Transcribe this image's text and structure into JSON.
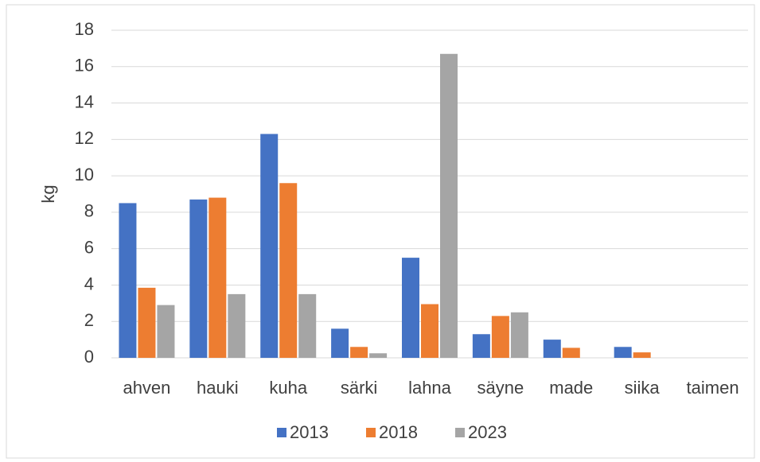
{
  "chart_data": {
    "type": "bar",
    "y_label": "kg",
    "categories": [
      "ahven",
      "hauki",
      "kuha",
      "särki",
      "lahna",
      "säyne",
      "made",
      "siika",
      "taimen"
    ],
    "series": [
      {
        "name": "2013",
        "color": "#4472c4",
        "values": [
          8.5,
          8.7,
          12.3,
          1.6,
          5.5,
          1.3,
          1.0,
          0.6,
          0
        ]
      },
      {
        "name": "2018",
        "color": "#ed7d31",
        "values": [
          3.85,
          8.8,
          9.6,
          0.6,
          2.95,
          2.3,
          0.55,
          0.3,
          0
        ]
      },
      {
        "name": "2023",
        "color": "#a5a5a5",
        "values": [
          2.9,
          3.5,
          3.5,
          0.25,
          16.7,
          2.5,
          0,
          0,
          0
        ]
      }
    ],
    "ylim": [
      0,
      18
    ],
    "yticks": [
      0,
      2,
      4,
      6,
      8,
      10,
      12,
      14,
      16,
      18
    ],
    "grid": true,
    "legend": "bottom"
  }
}
